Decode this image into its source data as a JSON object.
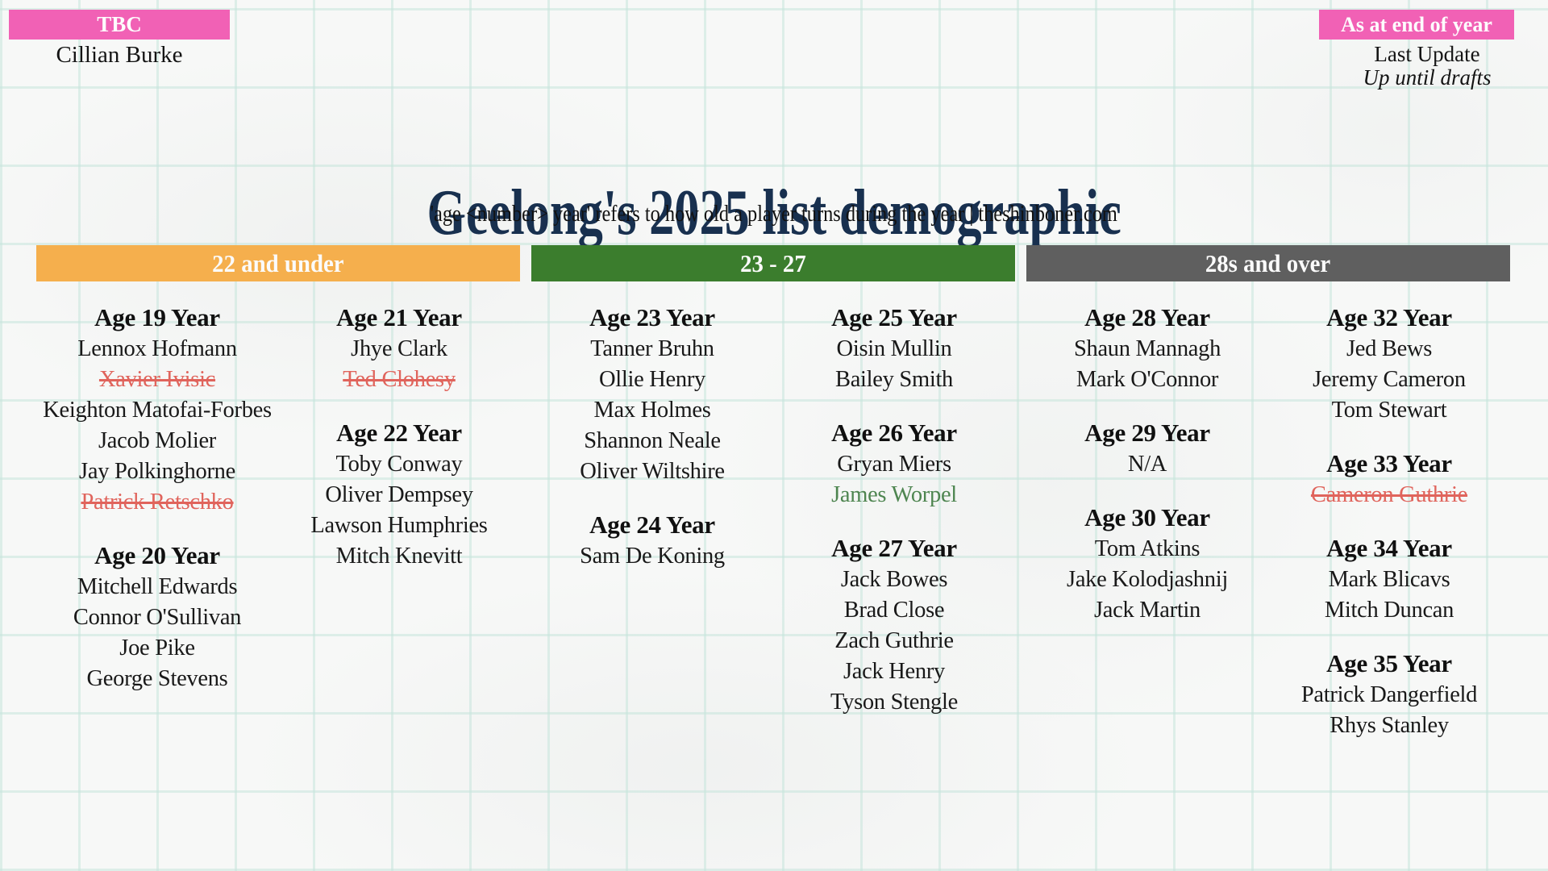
{
  "header": {
    "title": "Geelong's 2025 list demographic",
    "subtitle": "'age <number> year' refers to how old a player turns during the year | theshinboner.com"
  },
  "top_left": {
    "badge": "TBC",
    "player": "Cillian Burke"
  },
  "top_right": {
    "badge": "As at end of year",
    "line1": "Last Update",
    "line2": "Up until drafts"
  },
  "colors": {
    "badge_pink": "#F161B5",
    "group_orange": "#F5AF4D",
    "group_green": "#3B7D2D",
    "group_gray": "#5F5F5F",
    "title_navy": "#18304F",
    "struck_red": "#E0645C",
    "highlight_green": "#4E8550",
    "paper": "#F7F8F7",
    "grid_line": "#DCEEE9"
  },
  "groups": [
    {
      "label": "22 and under",
      "color": "#F5AF4D",
      "columns": [
        [
          {
            "heading": "Age 19 Year",
            "players": [
              {
                "name": "Lennox Hofmann"
              },
              {
                "name": "Xavier Ivisic",
                "status": "struck"
              },
              {
                "name": "Keighton Matofai-Forbes"
              },
              {
                "name": "Jacob Molier"
              },
              {
                "name": "Jay Polkinghorne"
              },
              {
                "name": "Patrick Retschko",
                "status": "struck"
              }
            ]
          },
          {
            "heading": "Age 20 Year",
            "players": [
              {
                "name": "Mitchell Edwards"
              },
              {
                "name": "Connor O'Sullivan"
              },
              {
                "name": "Joe Pike"
              },
              {
                "name": "George Stevens"
              }
            ]
          }
        ],
        [
          {
            "heading": "Age 21 Year",
            "players": [
              {
                "name": "Jhye Clark"
              },
              {
                "name": "Ted Clohesy",
                "status": "struck"
              }
            ]
          },
          {
            "heading": "Age 22 Year",
            "players": [
              {
                "name": "Toby Conway"
              },
              {
                "name": "Oliver Dempsey"
              },
              {
                "name": "Lawson Humphries"
              },
              {
                "name": "Mitch Knevitt"
              }
            ]
          }
        ]
      ]
    },
    {
      "label": "23 - 27",
      "color": "#3B7D2D",
      "columns": [
        [
          {
            "heading": "Age 23 Year",
            "players": [
              {
                "name": "Tanner Bruhn"
              },
              {
                "name": "Ollie Henry"
              },
              {
                "name": "Max Holmes"
              },
              {
                "name": "Shannon Neale"
              },
              {
                "name": "Oliver Wiltshire"
              }
            ]
          },
          {
            "heading": "Age 24 Year",
            "players": [
              {
                "name": "Sam De Koning"
              }
            ]
          }
        ],
        [
          {
            "heading": "Age 25 Year",
            "players": [
              {
                "name": "Oisin Mullin"
              },
              {
                "name": "Bailey Smith"
              }
            ]
          },
          {
            "heading": "Age 26 Year",
            "players": [
              {
                "name": "Gryan Miers"
              },
              {
                "name": "James Worpel",
                "status": "highlight"
              }
            ]
          },
          {
            "heading": "Age 27 Year",
            "players": [
              {
                "name": "Jack Bowes"
              },
              {
                "name": "Brad Close"
              },
              {
                "name": "Zach Guthrie"
              },
              {
                "name": "Jack Henry"
              },
              {
                "name": "Tyson Stengle"
              }
            ]
          }
        ]
      ]
    },
    {
      "label": "28s and over",
      "color": "#5F5F5F",
      "columns": [
        [
          {
            "heading": "Age 28 Year",
            "players": [
              {
                "name": "Shaun Mannagh"
              },
              {
                "name": "Mark O'Connor"
              }
            ]
          },
          {
            "heading": "Age 29 Year",
            "players": [
              {
                "name": "N/A"
              }
            ]
          },
          {
            "heading": "Age 30 Year",
            "players": [
              {
                "name": "Tom Atkins"
              },
              {
                "name": "Jake Kolodjashnij"
              },
              {
                "name": "Jack Martin"
              }
            ]
          }
        ],
        [
          {
            "heading": "Age 32 Year",
            "players": [
              {
                "name": "Jed Bews"
              },
              {
                "name": "Jeremy Cameron"
              },
              {
                "name": "Tom Stewart"
              }
            ]
          },
          {
            "heading": "Age 33 Year",
            "players": [
              {
                "name": "Cameron Guthrie",
                "status": "struck"
              }
            ]
          },
          {
            "heading": "Age 34 Year",
            "players": [
              {
                "name": "Mark Blicavs"
              },
              {
                "name": "Mitch Duncan"
              }
            ]
          },
          {
            "heading": "Age 35 Year",
            "players": [
              {
                "name": "Patrick Dangerfield"
              },
              {
                "name": "Rhys Stanley"
              }
            ]
          }
        ]
      ]
    }
  ]
}
